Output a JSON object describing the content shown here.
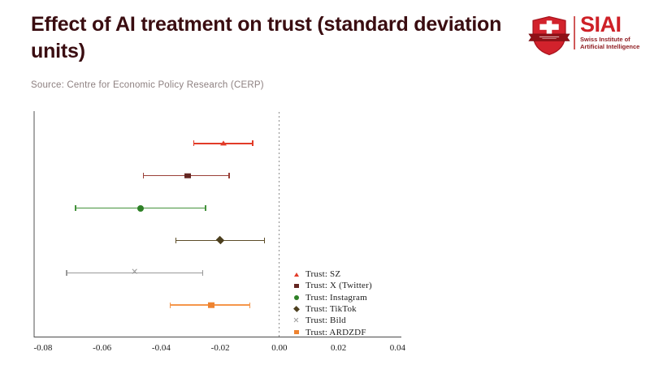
{
  "header": {
    "title": "Effect of AI treatment on trust (standard deviation units)",
    "source": "Source: Centre for Economic Policy Research (CERP)",
    "title_color": "#3a0d11",
    "source_color": "#8e8181"
  },
  "logo": {
    "acronym": "SIAI",
    "subtitle_line1": "Swiss Institute of",
    "subtitle_line2": "Artificial Intelligence",
    "brand_red": "#ce2027",
    "ribbon_red": "#8f1016"
  },
  "chart_data": {
    "type": "scatter",
    "subtype": "coefficient-plot-with-confidence-intervals",
    "title": "Effect of AI treatment on trust (standard deviation units)",
    "xlabel": "",
    "ylabel": "",
    "xlim": [
      -0.083,
      0.041
    ],
    "x_ticks": [
      -0.08,
      -0.06,
      -0.04,
      -0.02,
      0.0,
      0.02,
      0.04
    ],
    "x_tick_labels": [
      "-0.08",
      "-0.06",
      "-0.04",
      "-0.02",
      "0.00",
      "0.02",
      "0.04"
    ],
    "zero_line": 0.0,
    "grid": false,
    "legend_position": "lower-right-inside",
    "series": [
      {
        "name": "Trust: SZ",
        "marker": "triangle",
        "color": "#e23b28",
        "marker_color": "#e23b28",
        "value": -0.019,
        "ci_low": -0.029,
        "ci_high": -0.009
      },
      {
        "name": "Trust: X (Twitter)",
        "marker": "square",
        "color": "#9a4038",
        "marker_color": "#642622",
        "value": -0.031,
        "ci_low": -0.046,
        "ci_high": -0.017
      },
      {
        "name": "Trust: Instagram",
        "marker": "circle",
        "color": "#44923c",
        "marker_color": "#2e8026",
        "value": -0.047,
        "ci_low": -0.069,
        "ci_high": -0.025
      },
      {
        "name": "Trust: TikTok",
        "marker": "diamond",
        "color": "#5c4d28",
        "marker_color": "#4c3f1e",
        "value": -0.02,
        "ci_low": -0.035,
        "ci_high": -0.005
      },
      {
        "name": "Trust: Bild",
        "marker": "x",
        "color": "#999999",
        "marker_color": "#999999",
        "value": -0.049,
        "ci_low": -0.072,
        "ci_high": -0.026
      },
      {
        "name": "Trust: ARDZDF",
        "marker": "square",
        "color": "#f5964a",
        "marker_color": "#ee8330",
        "value": -0.023,
        "ci_low": -0.037,
        "ci_high": -0.01
      }
    ]
  }
}
